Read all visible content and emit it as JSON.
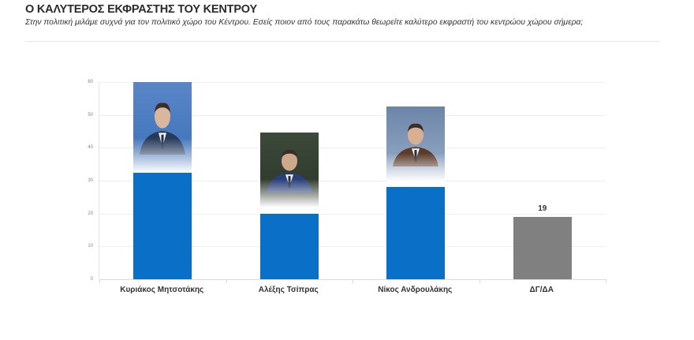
{
  "header": {
    "title": "Ο ΚΑΛΥΤΕΡΟΣ ΕΚΦΡΑΣΤΗΣ ΤΟΥ ΚΕΝΤΡΟΥ",
    "subtitle": "Στην πολιτική μιλάμε συχνά για τον πολιτικό χώρο του Κέντρου. Εσείς ποιον από τους παρακάτω θεωρείτε καλύτερο εκφραστή του κεντρώου χώρου σήμερα;"
  },
  "chart_data": {
    "type": "bar",
    "title": "Ο ΚΑΛΥΤΕΡΟΣ ΕΚΦΡΑΣΤΗΣ ΤΟΥ ΚΕΝΤΡΟΥ",
    "subtitle": "Στην πολιτική μιλάμε συχνά για τον πολιτικό χώρο του Κέντρου. Εσείς ποιον από τους παρακάτω θεωρείτε καλύτερο εκφραστή του κεντρώου χώρου σήμερα;",
    "categories": [
      "Κυριάκος Μητσοτάκης",
      "Αλέξης Τσίπρας",
      "Νίκος Ανδρουλάκης",
      "ΔΓ/ΔΑ"
    ],
    "values": [
      33,
      20,
      28,
      19
    ],
    "value_labels": [
      "33",
      "20",
      "28",
      "19"
    ],
    "colors": [
      "#0a6fc6",
      "#0a6fc6",
      "#0a6fc6",
      "#808080"
    ],
    "has_photo": [
      true,
      true,
      true,
      false
    ],
    "xlabel": "",
    "ylabel": "",
    "ylim": [
      0,
      60
    ],
    "yticks": [
      "0",
      "10",
      "20",
      "30",
      "40",
      "50",
      "60"
    ],
    "grid": true,
    "legend": "none"
  }
}
